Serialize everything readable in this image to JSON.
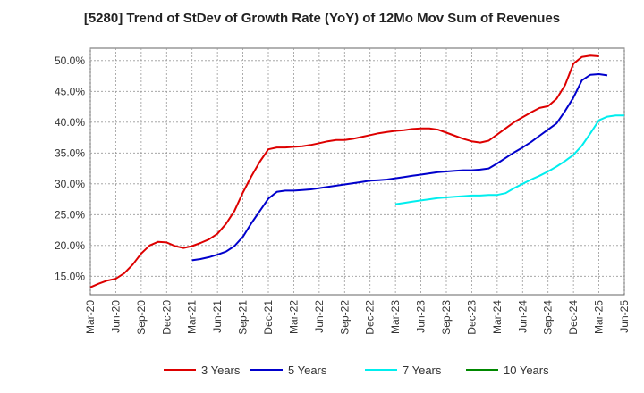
{
  "chart_data": {
    "type": "line",
    "title": "[5280]  Trend of StDev of Growth Rate (YoY) of 12Mo Mov Sum of Revenues",
    "xlabel": "",
    "ylabel": "",
    "ylim": [
      12.0,
      52.0
    ],
    "y_ticks": [
      "15.0%",
      "20.0%",
      "25.0%",
      "30.0%",
      "35.0%",
      "40.0%",
      "45.0%",
      "50.0%"
    ],
    "y_tick_values": [
      15,
      20,
      25,
      30,
      35,
      40,
      45,
      50
    ],
    "x_ticks": [
      "Mar-20",
      "Jun-20",
      "Sep-20",
      "Dec-20",
      "Mar-21",
      "Jun-21",
      "Sep-21",
      "Dec-21",
      "Mar-22",
      "Jun-22",
      "Sep-22",
      "Dec-22",
      "Mar-23",
      "Jun-23",
      "Sep-23",
      "Dec-23",
      "Mar-24",
      "Jun-24",
      "Sep-24",
      "Dec-24",
      "Mar-25",
      "Jun-25"
    ],
    "grid": true,
    "legend_position": "bottom",
    "series": [
      {
        "name": "3 Years",
        "color": "#dd0000",
        "start_index": 0,
        "values": [
          13.2,
          13.8,
          14.3,
          14.6,
          15.5,
          16.9,
          18.7,
          20.0,
          20.6,
          20.5,
          19.9,
          19.6,
          19.9,
          20.4,
          21.0,
          21.9,
          23.5,
          25.6,
          28.6,
          31.2,
          33.6,
          35.6,
          35.9,
          35.9,
          36.0,
          36.1,
          36.3,
          36.6,
          36.9,
          37.1,
          37.1,
          37.3,
          37.6,
          37.9,
          38.2,
          38.4,
          38.6,
          38.7,
          38.9,
          39.0,
          39.0,
          38.8,
          38.3,
          37.8,
          37.3,
          36.9,
          36.7,
          37.0,
          38.0,
          39.0,
          40.0,
          40.8,
          41.6,
          42.3,
          42.6,
          43.8,
          46.0,
          49.5,
          50.6,
          50.8,
          50.7
        ]
      },
      {
        "name": "5 Years",
        "color": "#0000cc",
        "start_index": 12,
        "values": [
          17.6,
          17.8,
          18.1,
          18.5,
          19.0,
          19.9,
          21.4,
          23.6,
          25.6,
          27.6,
          28.7,
          28.9,
          28.9,
          29.0,
          29.1,
          29.3,
          29.5,
          29.7,
          29.9,
          30.1,
          30.3,
          30.5,
          30.6,
          30.7,
          30.9,
          31.1,
          31.3,
          31.5,
          31.7,
          31.9,
          32.0,
          32.1,
          32.2,
          32.2,
          32.3,
          32.5,
          33.3,
          34.2,
          35.1,
          35.9,
          36.8,
          37.8,
          38.8,
          39.8,
          41.8,
          44.0,
          46.8,
          47.7,
          47.8,
          47.6
        ]
      },
      {
        "name": "7 Years",
        "color": "#00eeee",
        "start_index": 36,
        "values": [
          26.7,
          26.9,
          27.1,
          27.3,
          27.5,
          27.7,
          27.8,
          27.9,
          28.0,
          28.1,
          28.1,
          28.2,
          28.2,
          28.5,
          29.3,
          30.0,
          30.7,
          31.3,
          32.0,
          32.8,
          33.7,
          34.7,
          36.2,
          38.2,
          40.3,
          40.9,
          41.1,
          41.1
        ]
      },
      {
        "name": "10 Years",
        "color": "#008800",
        "start_index": 0,
        "values": []
      }
    ]
  }
}
